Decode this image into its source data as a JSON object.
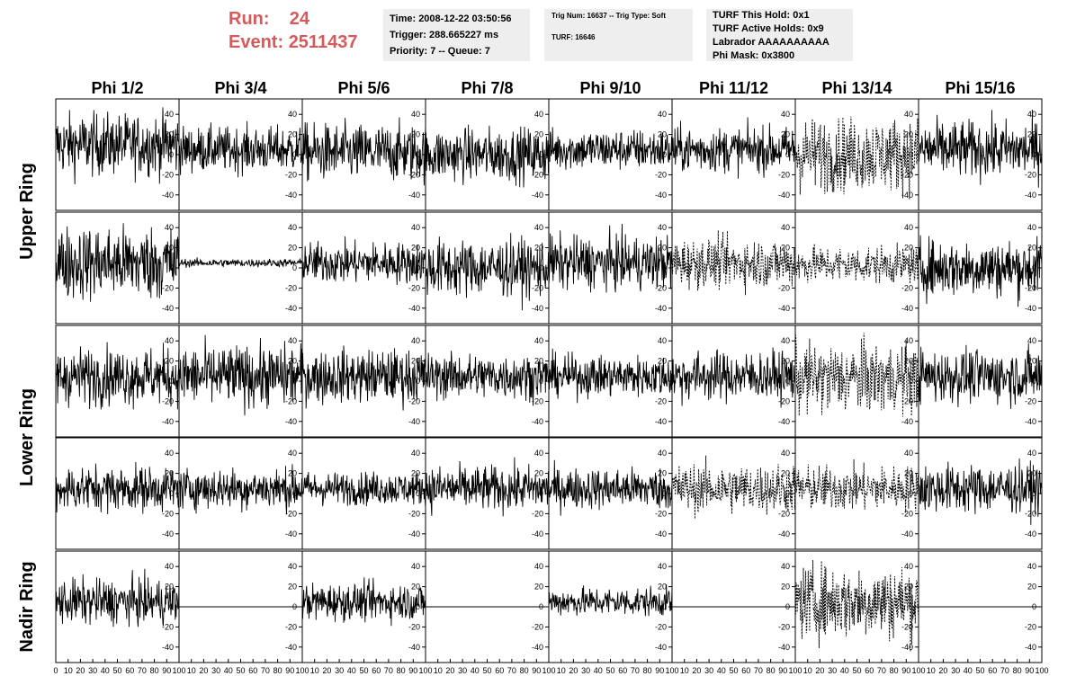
{
  "header": {
    "run_label": "Run:",
    "run_value": "24",
    "event_label": "Event:",
    "event_value": "2511437",
    "accent_color": "#d65a5a"
  },
  "time_box": {
    "time": "Time: 2008-12-22 03:50:56",
    "trigger": "Trigger: 288.665227 ms",
    "priority": "Priority: 7 -- Queue: 7"
  },
  "trig_box": {
    "trig_line": "Trig Num: 16637 -- Trig Type: Soft",
    "turf_line": "TURF: 16646"
  },
  "turf_box": {
    "this_hold": "TURF This Hold: 0x1",
    "active_holds": "TURF Active Holds: 0x9",
    "labrador": "Labrador AAAAAAAAAA",
    "phi_mask": "Phi Mask: 0x3800"
  },
  "chart_data": {
    "type": "line",
    "columns": [
      "Phi 1/2",
      "Phi 3/4",
      "Phi 5/6",
      "Phi 7/8",
      "Phi 9/10",
      "Phi 11/12",
      "Phi 13/14",
      "Phi 15/16"
    ],
    "ring_groups": [
      {
        "name": "Upper Ring",
        "rows": [
          0,
          1
        ]
      },
      {
        "name": "Lower Ring",
        "rows": [
          2,
          3
        ]
      },
      {
        "name": "Nadir Ring",
        "rows": [
          4
        ]
      }
    ],
    "xlim": [
      0,
      100
    ],
    "ylim": [
      -50,
      50
    ],
    "yticks": [
      -40,
      -20,
      0,
      20,
      40
    ],
    "xtick_labels": [
      "0",
      "10",
      "20",
      "30",
      "40",
      "50",
      "60",
      "70",
      "80",
      "90",
      "100"
    ],
    "panel_amplitude": [
      [
        15,
        11,
        14,
        13,
        10,
        11,
        18,
        14
      ],
      [
        18,
        2,
        10,
        14,
        13,
        12,
        9,
        14
      ],
      [
        14,
        15,
        13,
        11,
        10,
        12,
        17,
        13
      ],
      [
        11,
        10,
        8,
        11,
        10,
        12,
        11,
        12
      ],
      [
        11,
        0,
        9,
        0,
        7,
        0,
        18,
        0
      ]
    ],
    "panel_style": [
      [
        "solid",
        "solid",
        "solid",
        "solid",
        "solid",
        "solid",
        "dashed",
        "solid"
      ],
      [
        "solid",
        "solid",
        "solid",
        "solid",
        "solid",
        "dashed",
        "dashed",
        "solid"
      ],
      [
        "solid",
        "solid",
        "solid",
        "solid",
        "solid",
        "solid",
        "dashed",
        "solid"
      ],
      [
        "solid",
        "solid",
        "solid",
        "solid",
        "solid",
        "dashed",
        "dashed",
        "solid"
      ],
      [
        "solid",
        "solid",
        "solid",
        "solid",
        "solid",
        "solid",
        "dashed",
        "solid"
      ]
    ],
    "panel_offset": [
      [
        10,
        5,
        2,
        0,
        5,
        5,
        0,
        5
      ],
      [
        5,
        5,
        5,
        0,
        5,
        5,
        3,
        0
      ],
      [
        5,
        5,
        5,
        5,
        5,
        5,
        3,
        5
      ],
      [
        5,
        5,
        5,
        5,
        5,
        5,
        5,
        5
      ],
      [
        5,
        0,
        5,
        0,
        5,
        0,
        5,
        0
      ]
    ],
    "samples_per_trace": 260
  }
}
